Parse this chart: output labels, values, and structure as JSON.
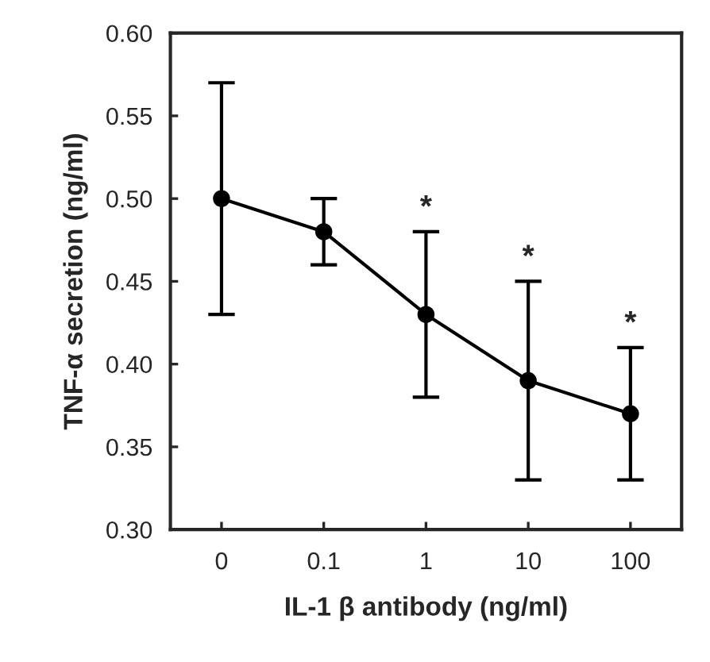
{
  "chart_data": {
    "type": "line",
    "xlabel": "IL-1 β antibody (ng/ml)",
    "ylabel": "TNF-α secretion (ng/ml)",
    "categories": [
      "0",
      "0.1",
      "1",
      "10",
      "100"
    ],
    "series": [
      {
        "color": "#000000",
        "values": [
          0.5,
          0.48,
          0.43,
          0.39,
          0.37
        ],
        "errors": [
          [
            0.43,
            0.57
          ],
          [
            0.46,
            0.5
          ],
          [
            0.38,
            0.48
          ],
          [
            0.33,
            0.45
          ],
          [
            0.33,
            0.41
          ]
        ]
      }
    ],
    "ylim": [
      0.3,
      0.6
    ],
    "yticks": [
      {
        "value": 0.3,
        "label": "0.30"
      },
      {
        "value": 0.35,
        "label": "0.35"
      },
      {
        "value": 0.4,
        "label": "0.40"
      },
      {
        "value": 0.45,
        "label": "0.45"
      },
      {
        "value": 0.5,
        "label": "0.50"
      },
      {
        "value": 0.55,
        "label": "0.55"
      },
      {
        "value": 0.6,
        "label": "0.60"
      }
    ],
    "marker": "circle",
    "line_style": "solid",
    "grid": false,
    "legend": false,
    "annotations": [
      {
        "text": "*",
        "x": "1",
        "y": 0.48
      },
      {
        "text": "*",
        "x": "10",
        "y": 0.45
      },
      {
        "text": "*",
        "x": "100",
        "y": 0.41
      }
    ]
  }
}
